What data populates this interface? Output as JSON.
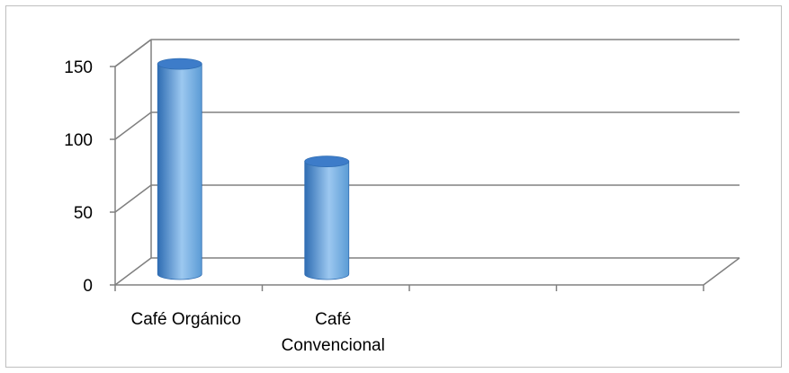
{
  "chart_data": {
    "type": "bar",
    "style": "3d-cylinder",
    "categories": [
      [
        "Café Orgánico"
      ],
      [
        "Café",
        "Convencional"
      ]
    ],
    "slots": 4,
    "values": [
      145,
      78
    ],
    "ylim": [
      0,
      150
    ],
    "yticks": [
      0,
      50,
      100,
      150
    ],
    "grid": true,
    "legend": "none",
    "title": "",
    "xlabel": "",
    "ylabel": "",
    "colors": {
      "bar_dark": "#2f6db3",
      "bar_mid": "#5b9bd5",
      "bar_light": "#9cc8f0",
      "bar_top": "#3d7cc9",
      "gridline": "#808080"
    }
  }
}
